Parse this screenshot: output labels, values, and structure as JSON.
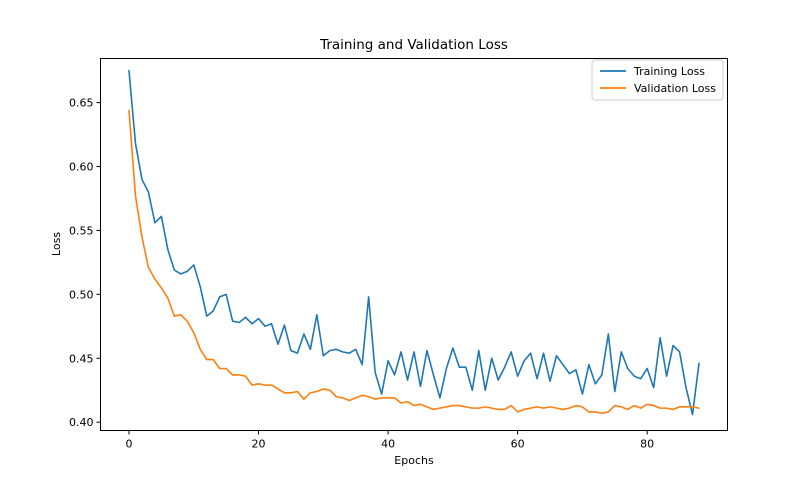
{
  "chart_data": {
    "type": "line",
    "title": "Training and Validation Loss",
    "xlabel": "Epochs",
    "ylabel": "Loss",
    "xlim": [
      -4.4,
      92.4
    ],
    "ylim": [
      0.3935,
      0.6845
    ],
    "xticks": [
      0,
      20,
      40,
      60,
      80
    ],
    "xtick_labels": [
      "0",
      "20",
      "40",
      "60",
      "80"
    ],
    "yticks": [
      0.4,
      0.45,
      0.5,
      0.55,
      0.6,
      0.65
    ],
    "ytick_labels": [
      "0.40",
      "0.45",
      "0.50",
      "0.55",
      "0.60",
      "0.65"
    ],
    "grid": false,
    "legend_position": "top-right",
    "x": [
      0,
      1,
      2,
      3,
      4,
      5,
      6,
      7,
      8,
      9,
      10,
      11,
      12,
      13,
      14,
      15,
      16,
      17,
      18,
      19,
      20,
      21,
      22,
      23,
      24,
      25,
      26,
      27,
      28,
      29,
      30,
      31,
      32,
      33,
      34,
      35,
      36,
      37,
      38,
      39,
      40,
      41,
      42,
      43,
      44,
      45,
      46,
      47,
      48,
      49,
      50,
      51,
      52,
      53,
      54,
      55,
      56,
      57,
      58,
      59,
      60,
      61,
      62,
      63,
      64,
      65,
      66,
      67,
      68,
      69,
      70,
      71,
      72,
      73,
      74,
      75,
      76,
      77,
      78,
      79,
      80,
      81,
      82,
      83,
      84,
      85,
      86,
      87,
      88
    ],
    "series": [
      {
        "name": "Training Loss",
        "color": "#1f77b4",
        "values": [
          0.675,
          0.618,
          0.59,
          0.58,
          0.556,
          0.561,
          0.535,
          0.519,
          0.516,
          0.518,
          0.523,
          0.506,
          0.483,
          0.487,
          0.498,
          0.5,
          0.479,
          0.478,
          0.482,
          0.477,
          0.481,
          0.475,
          0.477,
          0.461,
          0.476,
          0.456,
          0.454,
          0.469,
          0.457,
          0.484,
          0.452,
          0.456,
          0.457,
          0.455,
          0.454,
          0.457,
          0.445,
          0.498,
          0.439,
          0.422,
          0.448,
          0.437,
          0.455,
          0.433,
          0.455,
          0.428,
          0.456,
          0.437,
          0.419,
          0.442,
          0.458,
          0.443,
          0.443,
          0.425,
          0.456,
          0.425,
          0.45,
          0.433,
          0.443,
          0.455,
          0.436,
          0.448,
          0.454,
          0.434,
          0.454,
          0.432,
          0.452,
          0.445,
          0.438,
          0.441,
          0.422,
          0.445,
          0.43,
          0.437,
          0.469,
          0.424,
          0.455,
          0.442,
          0.436,
          0.434,
          0.442,
          0.427,
          0.466,
          0.436,
          0.46,
          0.455,
          0.427,
          0.406,
          0.446
        ]
      },
      {
        "name": "Validation Loss",
        "color": "#ff7f0e",
        "values": [
          0.644,
          0.577,
          0.545,
          0.521,
          0.512,
          0.505,
          0.497,
          0.483,
          0.484,
          0.479,
          0.47,
          0.457,
          0.449,
          0.449,
          0.442,
          0.442,
          0.437,
          0.437,
          0.436,
          0.429,
          0.43,
          0.429,
          0.429,
          0.426,
          0.423,
          0.423,
          0.424,
          0.418,
          0.423,
          0.424,
          0.426,
          0.425,
          0.42,
          0.419,
          0.417,
          0.419,
          0.421,
          0.42,
          0.418,
          0.419,
          0.419,
          0.419,
          0.415,
          0.416,
          0.413,
          0.414,
          0.412,
          0.41,
          0.411,
          0.412,
          0.413,
          0.413,
          0.412,
          0.411,
          0.411,
          0.412,
          0.411,
          0.41,
          0.41,
          0.413,
          0.408,
          0.41,
          0.411,
          0.412,
          0.411,
          0.412,
          0.411,
          0.41,
          0.411,
          0.413,
          0.412,
          0.408,
          0.408,
          0.407,
          0.408,
          0.413,
          0.412,
          0.41,
          0.413,
          0.411,
          0.414,
          0.413,
          0.411,
          0.411,
          0.41,
          0.412,
          0.412,
          0.412,
          0.411
        ]
      }
    ]
  }
}
